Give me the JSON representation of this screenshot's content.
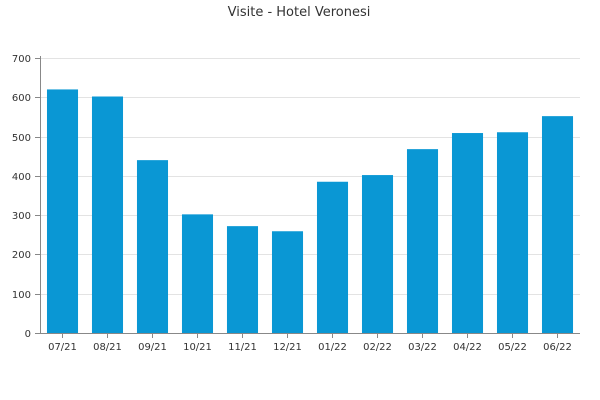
{
  "chart_data": {
    "type": "bar",
    "title": "Visite - Hotel Veronesi",
    "xlabel": "",
    "ylabel": "",
    "categories": [
      "07/21",
      "08/21",
      "09/21",
      "10/21",
      "11/21",
      "12/21",
      "01/22",
      "02/22",
      "03/22",
      "04/22",
      "05/22",
      "06/22"
    ],
    "values": [
      620,
      602,
      440,
      302,
      272,
      259,
      385,
      402,
      468,
      509,
      511,
      552
    ],
    "ylim": [
      0,
      700
    ],
    "yticks": [
      0,
      100,
      200,
      300,
      400,
      500,
      600,
      700
    ],
    "grid": true,
    "legend": "none",
    "bar_color": "#0a97d4"
  }
}
